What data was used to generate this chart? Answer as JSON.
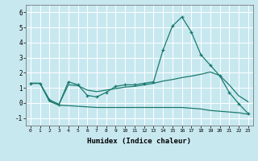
{
  "xlabel": "Humidex (Indice chaleur)",
  "bg_color": "#c8e8f0",
  "grid_color": "#ffffff",
  "line_color": "#1a7a6e",
  "xlim": [
    -0.5,
    23.5
  ],
  "ylim": [
    -1.5,
    6.5
  ],
  "xticks": [
    0,
    1,
    2,
    3,
    4,
    5,
    6,
    7,
    8,
    9,
    10,
    11,
    12,
    13,
    14,
    15,
    16,
    17,
    18,
    19,
    20,
    21,
    22,
    23
  ],
  "yticks": [
    -1,
    0,
    1,
    2,
    3,
    4,
    5,
    6
  ],
  "line1_x": [
    0,
    1,
    2,
    3,
    4,
    5,
    6,
    7,
    8,
    9,
    10,
    11,
    12,
    13,
    14,
    15,
    16,
    17,
    18,
    19,
    20,
    21,
    22,
    23
  ],
  "line1_y": [
    1.3,
    1.3,
    0.2,
    -0.1,
    1.4,
    1.2,
    0.5,
    0.4,
    0.7,
    1.1,
    1.2,
    1.2,
    1.3,
    1.4,
    3.5,
    5.1,
    5.7,
    4.7,
    3.2,
    2.5,
    1.8,
    0.7,
    -0.05,
    -0.7
  ],
  "line2_x": [
    0,
    1,
    2,
    3,
    4,
    5,
    6,
    7,
    8,
    9,
    10,
    11,
    12,
    13,
    14,
    15,
    16,
    17,
    18,
    19,
    20,
    21,
    22,
    23
  ],
  "line2_y": [
    1.3,
    1.3,
    0.2,
    -0.1,
    1.2,
    1.15,
    0.85,
    0.75,
    0.85,
    0.95,
    1.05,
    1.1,
    1.2,
    1.3,
    1.45,
    1.55,
    1.68,
    1.78,
    1.9,
    2.05,
    1.82,
    1.2,
    0.48,
    0.08
  ],
  "line3_x": [
    0,
    1,
    2,
    3,
    4,
    5,
    6,
    7,
    8,
    9,
    10,
    11,
    12,
    13,
    14,
    15,
    16,
    17,
    18,
    19,
    20,
    21,
    22,
    23
  ],
  "line3_y": [
    1.3,
    1.3,
    0.1,
    -0.15,
    -0.18,
    -0.22,
    -0.26,
    -0.3,
    -0.3,
    -0.3,
    -0.3,
    -0.3,
    -0.3,
    -0.3,
    -0.3,
    -0.3,
    -0.3,
    -0.35,
    -0.4,
    -0.5,
    -0.55,
    -0.6,
    -0.65,
    -0.75
  ]
}
